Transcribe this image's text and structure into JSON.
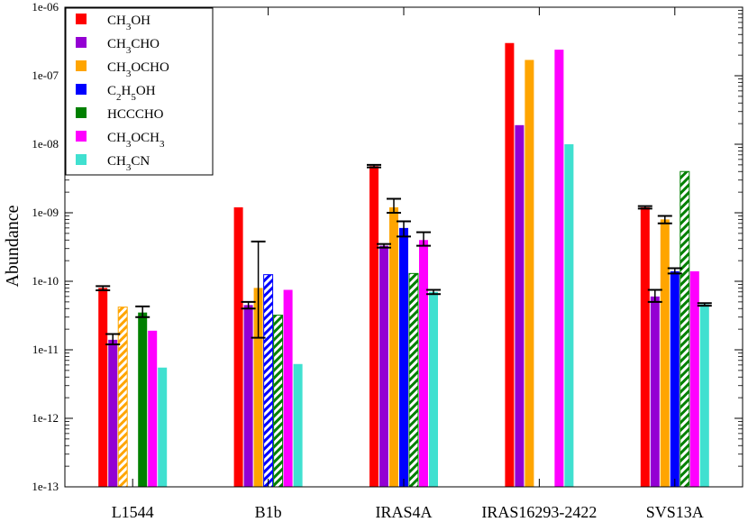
{
  "chart_data": {
    "type": "bar",
    "scale": "log",
    "title": "",
    "xlabel": "",
    "ylabel": "Abundance",
    "ylim": [
      1e-13,
      1e-06
    ],
    "yticks": [
      "1e-13",
      "1e-12",
      "1e-11",
      "1e-10",
      "1e-09",
      "1e-08",
      "1e-07",
      "1e-06"
    ],
    "categories": [
      "L1544",
      "B1b",
      "IRAS4A",
      "IRAS16293-2422",
      "SVS13A"
    ],
    "legend_position": "top-left",
    "series": [
      {
        "name": "CH3OH",
        "label_base": [
          "CH",
          "3",
          "OH"
        ],
        "color": "#ff0000",
        "values": [
          8e-11,
          1.2e-09,
          4.8e-09,
          3e-07,
          1.2e-09
        ],
        "hatched": [
          false,
          false,
          false,
          false,
          false
        ],
        "err_low": [
          7.4e-11,
          null,
          4.6e-09,
          null,
          1.15e-09
        ],
        "err_high": [
          8.5e-11,
          null,
          5e-09,
          null,
          1.25e-09
        ]
      },
      {
        "name": "CH3CHO",
        "label_base": [
          "CH",
          "3",
          "CHO"
        ],
        "color": "#9400d3",
        "values": [
          1.4e-11,
          4.5e-11,
          3.3e-10,
          1.9e-08,
          6e-11
        ],
        "hatched": [
          false,
          false,
          false,
          false,
          false
        ],
        "err_low": [
          1.2e-11,
          4e-11,
          3.1e-10,
          null,
          5e-11
        ],
        "err_high": [
          1.7e-11,
          5e-11,
          3.5e-10,
          null,
          7.5e-11
        ]
      },
      {
        "name": "CH3OCHO",
        "label_base": [
          "CH",
          "3",
          "OCHO"
        ],
        "color": "#ffa500",
        "values": [
          4.2e-11,
          8e-11,
          1.2e-09,
          1.7e-07,
          8e-10
        ],
        "hatched": [
          true,
          false,
          false,
          false,
          false
        ],
        "err_low": [
          null,
          1.5e-11,
          1e-09,
          null,
          7e-10
        ],
        "err_high": [
          null,
          3.8e-10,
          1.6e-09,
          null,
          9e-10
        ]
      },
      {
        "name": "C2H5OH",
        "label_base": [
          "C",
          "2",
          "H",
          "5",
          "OH"
        ],
        "color": "#0000ff",
        "values": [
          null,
          1.25e-10,
          6e-10,
          null,
          1.4e-10
        ],
        "hatched": [
          false,
          true,
          false,
          false,
          false
        ],
        "err_low": [
          null,
          null,
          4.5e-10,
          null,
          1.3e-10
        ],
        "err_high": [
          null,
          null,
          7.5e-10,
          null,
          1.55e-10
        ]
      },
      {
        "name": "HCCCHO",
        "label_base": [
          "HCCCHO"
        ],
        "color": "#008000",
        "values": [
          3.5e-11,
          3.2e-11,
          1.3e-10,
          null,
          4e-09
        ],
        "hatched": [
          false,
          true,
          true,
          false,
          true
        ],
        "err_low": [
          3e-11,
          null,
          null,
          null,
          null
        ],
        "err_high": [
          4.3e-11,
          null,
          null,
          null,
          null
        ]
      },
      {
        "name": "CH3OCH3",
        "label_base": [
          "CH",
          "3",
          "OCH",
          "3"
        ],
        "color": "#ff00ff",
        "values": [
          1.9e-11,
          7.5e-11,
          4e-10,
          2.4e-07,
          1.4e-10
        ],
        "hatched": [
          false,
          false,
          false,
          false,
          false
        ],
        "err_low": [
          null,
          null,
          3.3e-10,
          null,
          null
        ],
        "err_high": [
          null,
          null,
          5.2e-10,
          null,
          null
        ]
      },
      {
        "name": "CH3CN",
        "label_base": [
          "CH",
          "3",
          "CN"
        ],
        "color": "#40e0d0",
        "values": [
          5.5e-12,
          6.2e-12,
          7e-11,
          1e-08,
          4.6e-11
        ],
        "hatched": [
          false,
          false,
          false,
          false,
          false
        ],
        "err_low": [
          null,
          null,
          6.5e-11,
          null,
          4.4e-11
        ],
        "err_high": [
          null,
          null,
          7.5e-11,
          null,
          4.8e-11
        ]
      }
    ]
  }
}
